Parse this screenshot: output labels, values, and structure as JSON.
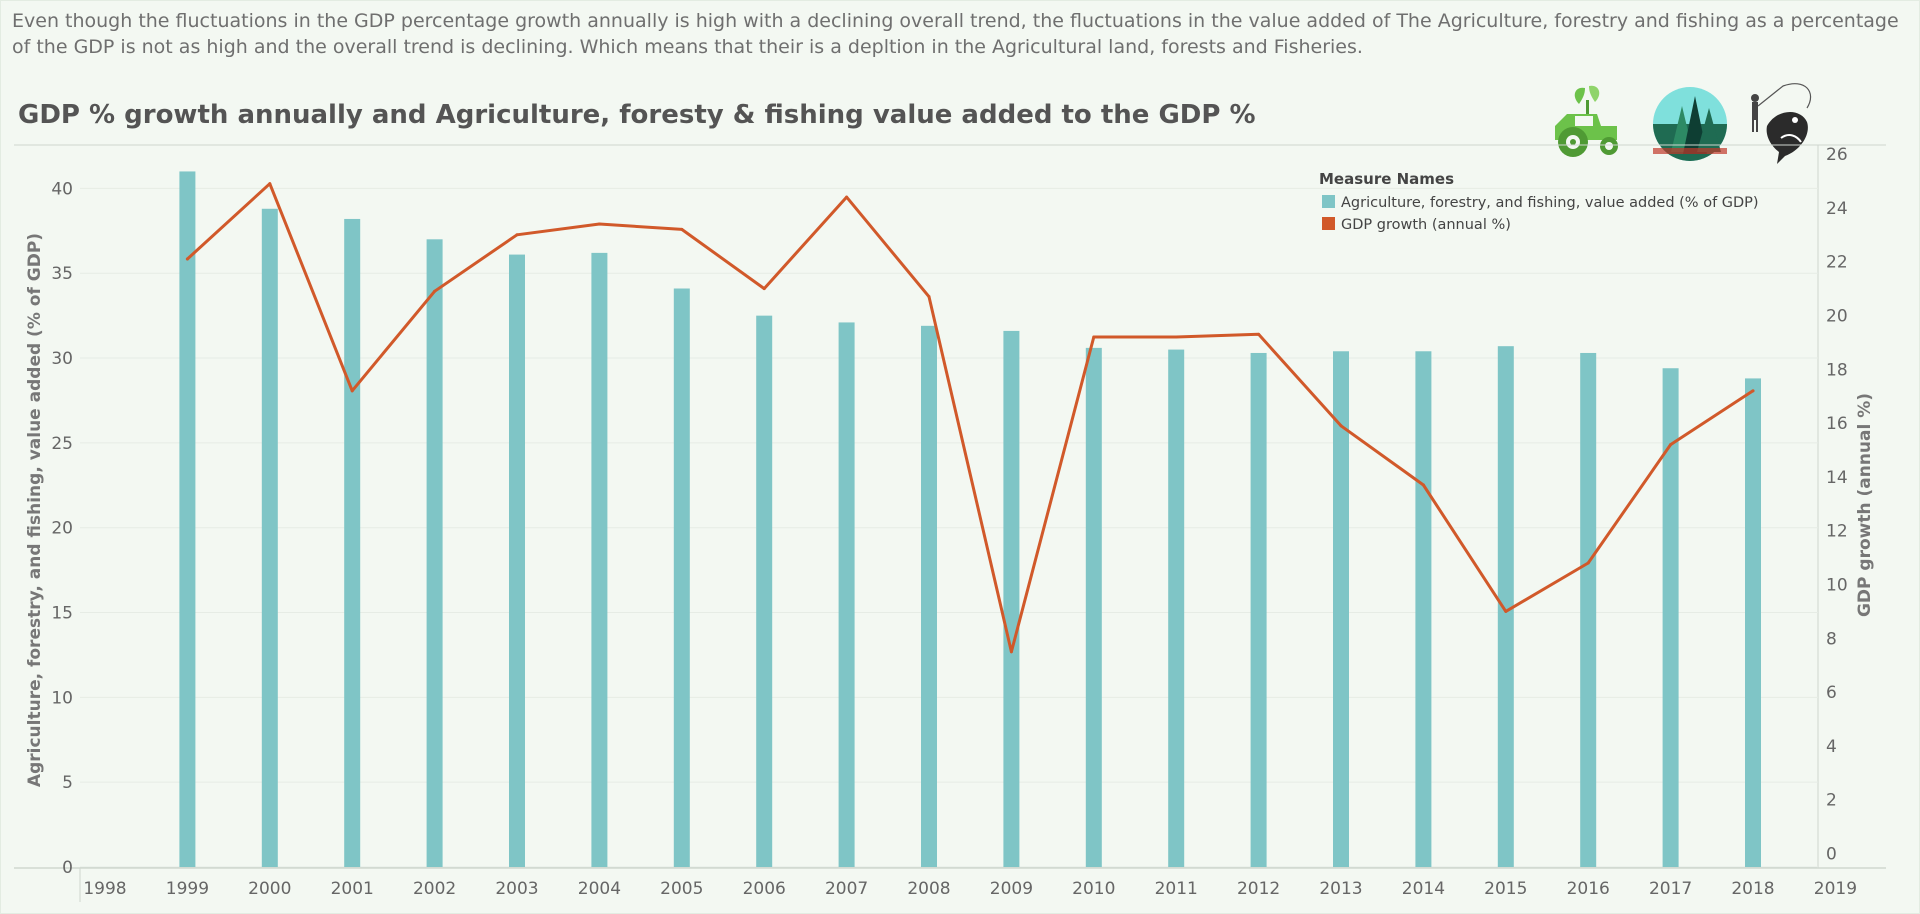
{
  "caption": "Even though the fluctuations in the GDP percentage growth annually is high with a declining overall trend,  the fluctuations in the value added of The Agriculture, forestry and fishing as a percentage of the GDP is not as high and the overall trend is declining. Which means that their is a depltion in the Agricultural land, forests and Fisheries.",
  "icons": [
    "tractor-icon",
    "forest-icon",
    "fishing-icon"
  ],
  "chart_data": {
    "type": "bar",
    "title": "GDP % growth annually and Agriculture, foresty & fishing value added to the GDP %",
    "x_ticks": [
      "1998",
      "1999",
      "2000",
      "2001",
      "2002",
      "2003",
      "2004",
      "2005",
      "2006",
      "2007",
      "2008",
      "2009",
      "2010",
      "2011",
      "2012",
      "2013",
      "2014",
      "2015",
      "2016",
      "2017",
      "2018",
      "2019"
    ],
    "categories": [
      "1999",
      "2000",
      "2001",
      "2002",
      "2003",
      "2004",
      "2005",
      "2006",
      "2007",
      "2008",
      "2009",
      "2010",
      "2011",
      "2012",
      "2013",
      "2014",
      "2015",
      "2016",
      "2017",
      "2018"
    ],
    "ylabel": "Agriculture, forestry, and fishing, value added (% of GDP)",
    "y2label": "GDP growth (annual %)",
    "ylim": [
      0,
      42.5
    ],
    "yticks": [
      0,
      5,
      10,
      15,
      20,
      25,
      30,
      35,
      40
    ],
    "y2lim": [
      -0.5,
      26.3
    ],
    "y2ticks": [
      0,
      2,
      4,
      6,
      8,
      10,
      12,
      14,
      16,
      18,
      20,
      22,
      24,
      26
    ],
    "grid": true,
    "legend": {
      "title": "Measure Names",
      "placement": "top-right",
      "entries": [
        {
          "label": "Agriculture, forestry, and fishing, value added (% of GDP)",
          "color": "#7fc5c6"
        },
        {
          "label": "GDP growth (annual %)",
          "color": "#d1592a"
        }
      ]
    },
    "series": [
      {
        "name": "Agriculture, forestry, and fishing, value added (% of GDP)",
        "type": "bar",
        "axis": "left",
        "color": "#7fc5c6",
        "values": [
          41.0,
          38.8,
          38.2,
          37.0,
          36.1,
          36.2,
          34.1,
          32.5,
          32.1,
          31.9,
          31.6,
          30.6,
          30.5,
          30.3,
          30.4,
          30.4,
          30.7,
          30.3,
          29.4,
          28.8
        ]
      },
      {
        "name": "GDP growth (annual %)",
        "type": "line",
        "axis": "right",
        "color": "#d1592a",
        "values": [
          22.1,
          24.9,
          17.2,
          20.9,
          23.0,
          23.4,
          23.2,
          21.0,
          24.4,
          20.7,
          7.5,
          19.2,
          19.2,
          19.3,
          15.9,
          13.7,
          9.0,
          10.8,
          15.2,
          17.2
        ]
      }
    ]
  }
}
